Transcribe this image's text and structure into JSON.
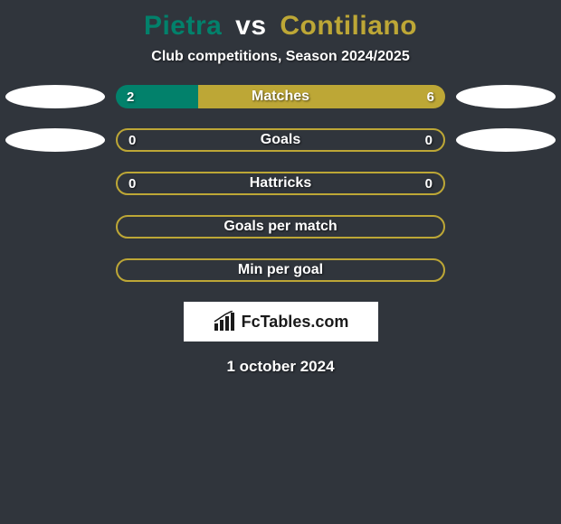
{
  "background_color": "#30353c",
  "title": {
    "player1": "Pietra",
    "connector": "vs",
    "player2": "Contiliano",
    "color_p1": "#02816b",
    "color_vs": "#ffffff",
    "color_p2": "#bda736",
    "fontsize": 30
  },
  "subtitle": {
    "text": "Club competitions, Season 2024/2025",
    "color": "#ffffff",
    "fontsize": 16
  },
  "ovals": {
    "row1_left_color": "#ffffff",
    "row1_right_color": "#ffffff",
    "row2_left_color": "#ffffff",
    "row2_right_color": "#ffffff"
  },
  "bars": [
    {
      "label": "Matches",
      "left_value": "2",
      "right_value": "6",
      "left_fill_color": "#02816b",
      "right_fill_color": "#bda736",
      "left_frac": 0.25,
      "right_frac": 0.75,
      "show_ovals": true
    },
    {
      "label": "Goals",
      "left_value": "0",
      "right_value": "0",
      "left_fill_color": "#02816b",
      "right_fill_color": "#bda736",
      "left_frac": 0,
      "right_frac": 0,
      "border_color": "#bda736",
      "show_ovals": true
    },
    {
      "label": "Hattricks",
      "left_value": "0",
      "right_value": "0",
      "left_fill_color": "#02816b",
      "right_fill_color": "#bda736",
      "left_frac": 0,
      "right_frac": 0,
      "border_color": "#bda736",
      "show_ovals": false
    }
  ],
  "empty_bars": [
    {
      "label": "Goals per match",
      "border_color": "#bda736"
    },
    {
      "label": "Min per goal",
      "border_color": "#bda736"
    }
  ],
  "logo": {
    "text": "FcTables.com",
    "bg_color": "#ffffff",
    "text_color": "#1a1a1a",
    "icon_color": "#1a1a1a"
  },
  "date": {
    "text": "1 october 2024",
    "color": "#ffffff",
    "fontsize": 17
  }
}
